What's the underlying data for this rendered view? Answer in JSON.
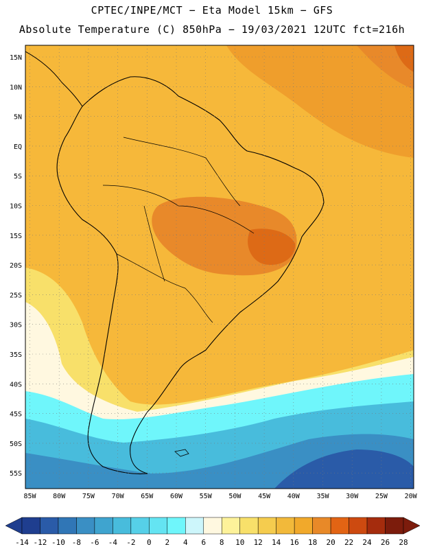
{
  "header": {
    "line1": "CPTEC/INPE/MCT −  Eta Model 15km − GFS",
    "line2": "Absolute Temperature (C) 850hPa − 19/03/2021 12UTC fct=216h"
  },
  "map": {
    "lat_labels": [
      "15N",
      "10N",
      "5N",
      "EQ",
      "5S",
      "10S",
      "15S",
      "20S",
      "25S",
      "30S",
      "35S",
      "40S",
      "45S",
      "50S",
      "55S"
    ],
    "lon_labels": [
      "85W",
      "80W",
      "75W",
      "70W",
      "65W",
      "60W",
      "55W",
      "50W",
      "45W",
      "40W",
      "35W",
      "30W",
      "25W",
      "20W"
    ],
    "colors": {
      "background": "#f6b83a",
      "warm_core": "#e8892a",
      "hot_spot": "#dd6a16",
      "coast_line": "#000000"
    }
  },
  "colorbar": {
    "labels": [
      "-14",
      "-12",
      "-10",
      "-8",
      "-6",
      "-4",
      "-2",
      "0",
      "2",
      "4",
      "6",
      "8",
      "10",
      "12",
      "14",
      "16",
      "18",
      "20",
      "22",
      "24",
      "26",
      "28"
    ],
    "colors": [
      "#1f3e8f",
      "#2a5ba8",
      "#3076b6",
      "#3a8fc4",
      "#3fa4cf",
      "#48bcdc",
      "#56d0e8",
      "#64e4f2",
      "#6ff6fb",
      "#cdf6fb",
      "#fff8e0",
      "#fdf29a",
      "#f8e06a",
      "#f5cc4e",
      "#f2b93a",
      "#f1a92b",
      "#e88928",
      "#e26414",
      "#cd4a10",
      "#a52c0d",
      "#7c1c0c"
    ]
  }
}
